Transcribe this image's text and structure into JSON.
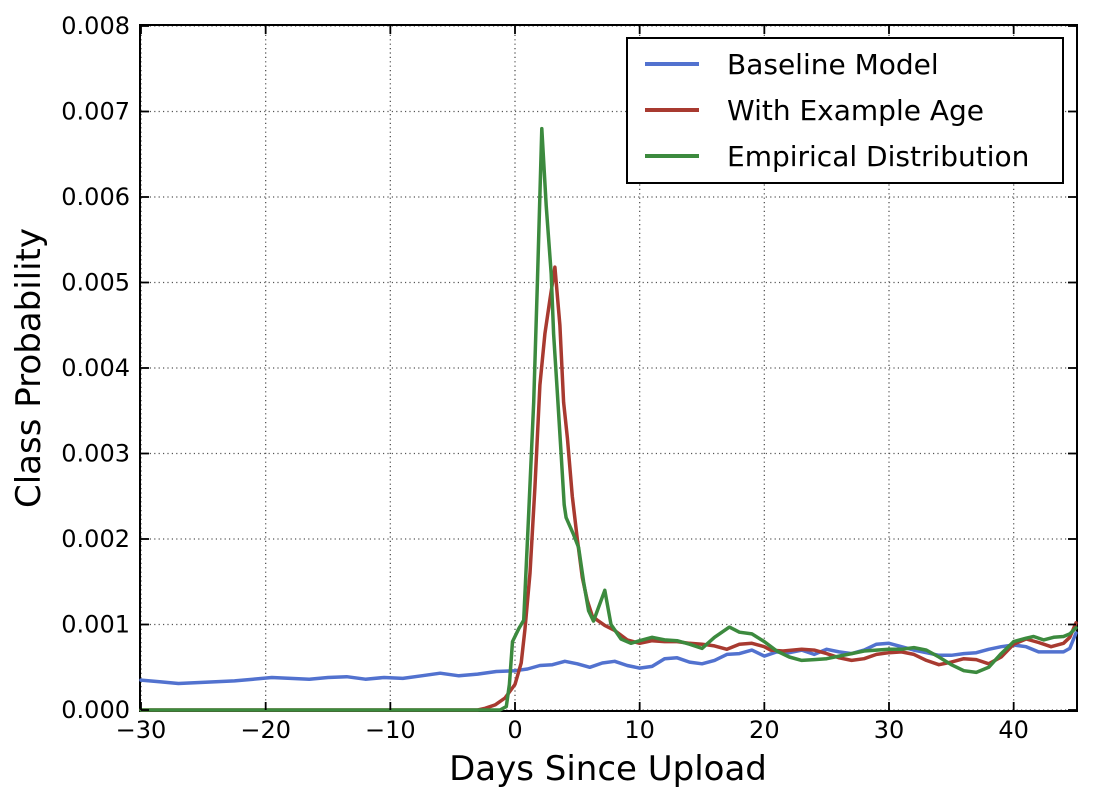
{
  "chart_data": {
    "type": "line",
    "title": "",
    "xlabel": "Days Since Upload",
    "ylabel": "Class Probability",
    "xlim": [
      -30,
      45
    ],
    "ylim": [
      0,
      0.008
    ],
    "grid": "dotted",
    "legend_position": "upper right",
    "x_ticks": [
      -30,
      -20,
      -10,
      0,
      10,
      20,
      30,
      40
    ],
    "x_tick_labels": [
      "−30",
      "−20",
      "−10",
      "0",
      "10",
      "20",
      "30",
      "40"
    ],
    "y_ticks": [
      0,
      0.001,
      0.002,
      0.003,
      0.004,
      0.005,
      0.006,
      0.007,
      0.008
    ],
    "y_tick_labels": [
      "0.000",
      "0.001",
      "0.002",
      "0.003",
      "0.004",
      "0.005",
      "0.006",
      "0.007",
      "0.008"
    ],
    "series": [
      {
        "name": "Baseline Model",
        "color": "#5272cf",
        "x": [
          -30,
          -28.5,
          -27,
          -25.5,
          -24,
          -22.5,
          -21,
          -19.5,
          -18,
          -16.5,
          -15,
          -13.5,
          -12,
          -10.5,
          -9,
          -7.5,
          -6,
          -4.5,
          -3,
          -1.5,
          0,
          1,
          2,
          3,
          4,
          5,
          6,
          7,
          8,
          9,
          10,
          11,
          12,
          13,
          14,
          15,
          16,
          17,
          18,
          19,
          20,
          21,
          22,
          23,
          24,
          25,
          26,
          27,
          28,
          29,
          30,
          31,
          32,
          33,
          34,
          35,
          36,
          37,
          38,
          39,
          40,
          41,
          42,
          43,
          44,
          44.5,
          45
        ],
        "y": [
          0.00035,
          0.00033,
          0.00031,
          0.00032,
          0.00033,
          0.00034,
          0.00036,
          0.00038,
          0.00037,
          0.00036,
          0.00038,
          0.00039,
          0.00036,
          0.00038,
          0.00037,
          0.0004,
          0.00043,
          0.0004,
          0.00042,
          0.00045,
          0.00046,
          0.00048,
          0.00052,
          0.00053,
          0.00057,
          0.00054,
          0.0005,
          0.00055,
          0.00057,
          0.00052,
          0.00049,
          0.00051,
          0.0006,
          0.00061,
          0.00056,
          0.00054,
          0.00058,
          0.00065,
          0.00066,
          0.0007,
          0.00063,
          0.00068,
          0.00067,
          0.0007,
          0.00065,
          0.00071,
          0.00068,
          0.00066,
          0.0007,
          0.00077,
          0.00078,
          0.00074,
          0.0007,
          0.00067,
          0.00064,
          0.00064,
          0.00066,
          0.00067,
          0.00071,
          0.00074,
          0.00076,
          0.00074,
          0.00068,
          0.00068,
          0.00068,
          0.00072,
          0.0009
        ]
      },
      {
        "name": "With Example Age",
        "color": "#a83a30",
        "x": [
          -30,
          -25,
          -20,
          -15,
          -10,
          -5,
          -3,
          -2.4,
          -1.6,
          -0.8,
          0,
          0.5,
          0.8,
          1.2,
          1.6,
          2,
          2.4,
          2.8,
          3.2,
          3.6,
          3.9,
          4.2,
          4.6,
          5,
          5.4,
          5.8,
          6.2,
          6.6,
          7.2,
          8,
          9,
          10,
          11,
          12,
          13,
          14,
          15,
          16,
          17,
          18,
          19,
          20,
          20.5,
          21.5,
          23,
          24,
          25,
          26,
          27,
          28,
          29,
          30,
          31,
          32,
          33,
          34,
          35,
          36,
          37,
          38,
          39,
          40,
          41,
          42,
          43,
          44,
          44.5,
          45
        ],
        "y": [
          0,
          0,
          0,
          0,
          0,
          0,
          0,
          2e-05,
          6e-05,
          0.00014,
          0.0003,
          0.00055,
          0.00095,
          0.0016,
          0.0026,
          0.0038,
          0.0044,
          0.0048,
          0.00518,
          0.0045,
          0.0036,
          0.00318,
          0.0025,
          0.002,
          0.00155,
          0.00128,
          0.0011,
          0.00105,
          0.00099,
          0.00093,
          0.00082,
          0.00078,
          0.00081,
          0.0008,
          0.0008,
          0.00078,
          0.00077,
          0.00075,
          0.00071,
          0.00077,
          0.00078,
          0.00074,
          0.0007,
          0.00069,
          0.00071,
          0.0007,
          0.00066,
          0.00061,
          0.00058,
          0.0006,
          0.00065,
          0.00067,
          0.00068,
          0.00065,
          0.00058,
          0.00053,
          0.00056,
          0.0006,
          0.00059,
          0.00054,
          0.00062,
          0.00077,
          0.00083,
          0.00079,
          0.00074,
          0.00078,
          0.00085,
          0.00102
        ]
      },
      {
        "name": "Empirical Distribution",
        "color": "#3c8a3e",
        "x": [
          -30,
          -25,
          -20,
          -15,
          -10,
          -5,
          -2,
          -1.2,
          -0.7,
          -0.45,
          -0.2,
          0.3,
          0.7,
          1.1,
          1.5,
          1.8,
          2.15,
          2.5,
          2.9,
          3.1,
          3.4,
          3.7,
          3.95,
          4.1,
          4.7,
          5.1,
          5.5,
          5.9,
          6.3,
          7.2,
          7.7,
          8.5,
          9.3,
          10,
          11,
          12,
          13,
          14,
          15,
          16,
          17.2,
          18,
          19,
          20,
          21,
          22,
          23,
          24,
          25,
          26,
          27,
          28,
          29,
          30,
          31,
          32,
          33,
          34,
          35,
          36,
          37,
          38,
          39,
          40,
          41,
          41.6,
          42.4,
          43.2,
          44,
          44.5,
          45
        ],
        "y": [
          0,
          0,
          0,
          0,
          0,
          0,
          0,
          0,
          4e-05,
          0.0003,
          0.0008,
          0.00095,
          0.00105,
          0.0023,
          0.0036,
          0.005,
          0.0068,
          0.0059,
          0.0051,
          0.0044,
          0.0037,
          0.003,
          0.0024,
          0.00225,
          0.00205,
          0.0019,
          0.0015,
          0.00116,
          0.00104,
          0.0014,
          0.001,
          0.00083,
          0.00078,
          0.00081,
          0.00085,
          0.00082,
          0.00081,
          0.00077,
          0.00072,
          0.00085,
          0.00097,
          0.00091,
          0.00089,
          0.0008,
          0.00069,
          0.00062,
          0.00058,
          0.00059,
          0.0006,
          0.00063,
          0.00066,
          0.00069,
          0.0007,
          0.00071,
          0.00071,
          0.00073,
          0.0007,
          0.00062,
          0.00053,
          0.00046,
          0.00044,
          0.0005,
          0.00066,
          0.0008,
          0.00084,
          0.00086,
          0.00082,
          0.00085,
          0.00086,
          0.00089,
          0.00096
        ]
      }
    ]
  }
}
